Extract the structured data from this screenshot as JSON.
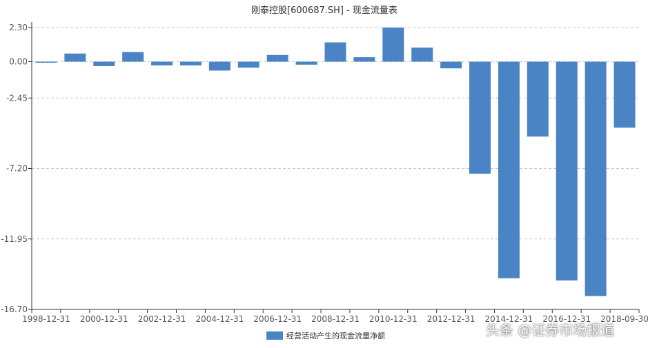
{
  "chart_data": {
    "type": "bar",
    "title": "刚泰控股[600687.SH] - 现金流量表",
    "categories": [
      "1998-12-31",
      "1999-12-31",
      "2000-12-31",
      "2001-12-31",
      "2002-12-31",
      "2003-12-31",
      "2004-12-31",
      "2005-12-31",
      "2006-12-31",
      "2007-12-31",
      "2008-12-31",
      "2009-12-31",
      "2010-12-31",
      "2011-12-31",
      "2012-12-31",
      "2013-12-31",
      "2014-12-31",
      "2015-12-31",
      "2016-12-31",
      "2017-12-31",
      "2018-09-30"
    ],
    "x_tick_labels": [
      "1998-12-31",
      "2000-12-31",
      "2002-12-31",
      "2004-12-31",
      "2006-12-31",
      "2008-12-31",
      "2010-12-31",
      "2012-12-31",
      "2014-12-31",
      "2016-12-31",
      "2018-09-30"
    ],
    "series": [
      {
        "name": "经营活动产生的现金流量净额",
        "values": [
          -0.05,
          0.55,
          -0.3,
          0.65,
          -0.25,
          -0.25,
          -0.6,
          -0.4,
          0.45,
          -0.2,
          1.3,
          0.3,
          2.3,
          0.95,
          -0.45,
          -7.55,
          -14.6,
          -5.05,
          -14.75,
          -15.8,
          -4.45
        ]
      }
    ],
    "y_ticks": [
      "2.30",
      "0.00",
      "-2.45",
      "-7.20",
      "-11.95",
      "-16.70"
    ],
    "y_tick_values": [
      2.3,
      0.0,
      -2.45,
      -7.2,
      -11.95,
      -16.7
    ],
    "ylim": [
      -16.7,
      2.3
    ],
    "grid": true,
    "legend_position": "bottom",
    "bar_color": "#4a84c4"
  },
  "watermark": "头条 @证券市场报道"
}
